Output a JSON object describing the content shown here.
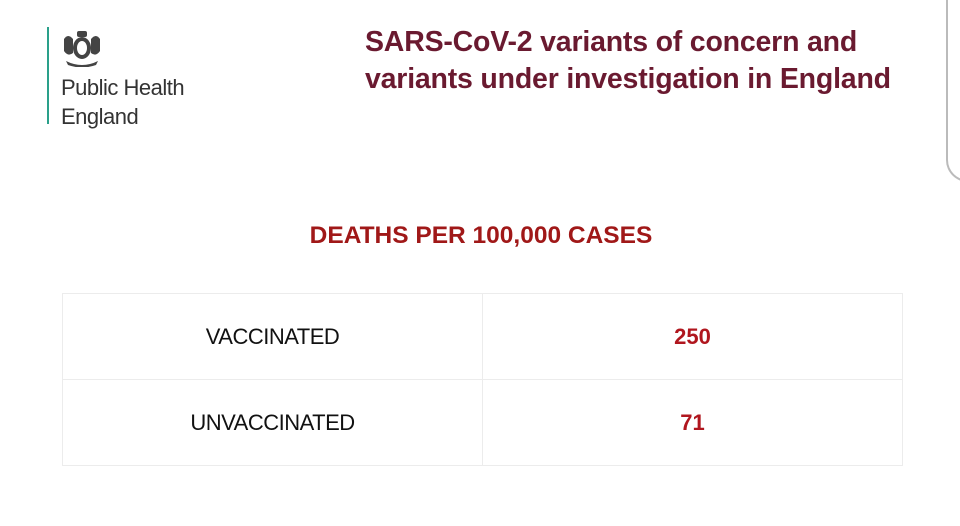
{
  "logo": {
    "org_line1": "Public Health",
    "org_line2": "England",
    "accent_color": "#2aa08a",
    "icon": "royal-crest-icon"
  },
  "title": "SARS-CoV-2 variants of concern and variants under investigation in England",
  "heading": "DEATHS PER 100,000 CASES",
  "table": {
    "rows": [
      {
        "label": "VACCINATED",
        "value": "250"
      },
      {
        "label": "UNVACCINATED",
        "value": "71"
      }
    ]
  },
  "colors": {
    "title": "#6a1a30",
    "heading": "#a01818",
    "value": "#b0161e"
  }
}
